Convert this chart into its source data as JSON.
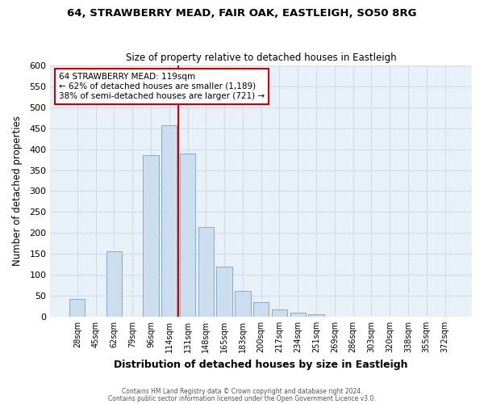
{
  "title": "64, STRAWBERRY MEAD, FAIR OAK, EASTLEIGH, SO50 8RG",
  "subtitle": "Size of property relative to detached houses in Eastleigh",
  "xlabel": "Distribution of detached houses by size in Eastleigh",
  "ylabel": "Number of detached properties",
  "bar_color": "#ccdded",
  "bar_edge_color": "#88aacc",
  "grid_color": "#d0dce8",
  "bg_color": "#e8f0f8",
  "fig_color": "#ffffff",
  "annotation_box_edge": "#cc0000",
  "vline_color": "#cc0000",
  "categories": [
    "28sqm",
    "45sqm",
    "62sqm",
    "79sqm",
    "96sqm",
    "114sqm",
    "131sqm",
    "148sqm",
    "165sqm",
    "183sqm",
    "200sqm",
    "217sqm",
    "234sqm",
    "251sqm",
    "269sqm",
    "286sqm",
    "303sqm",
    "320sqm",
    "338sqm",
    "355sqm",
    "372sqm"
  ],
  "values": [
    42,
    0,
    157,
    0,
    385,
    457,
    390,
    215,
    120,
    62,
    35,
    18,
    10,
    5,
    0,
    0,
    0,
    0,
    0,
    0,
    0
  ],
  "ylim": [
    0,
    600
  ],
  "yticks": [
    0,
    50,
    100,
    150,
    200,
    250,
    300,
    350,
    400,
    450,
    500,
    550,
    600
  ],
  "vline_x_index": 5,
  "annotation_text": "64 STRAWBERRY MEAD: 119sqm\n← 62% of detached houses are smaller (1,189)\n38% of semi-detached houses are larger (721) →",
  "footer_line1": "Contains HM Land Registry data © Crown copyright and database right 2024.",
  "footer_line2": "Contains public sector information licensed under the Open Government Licence v3.0."
}
